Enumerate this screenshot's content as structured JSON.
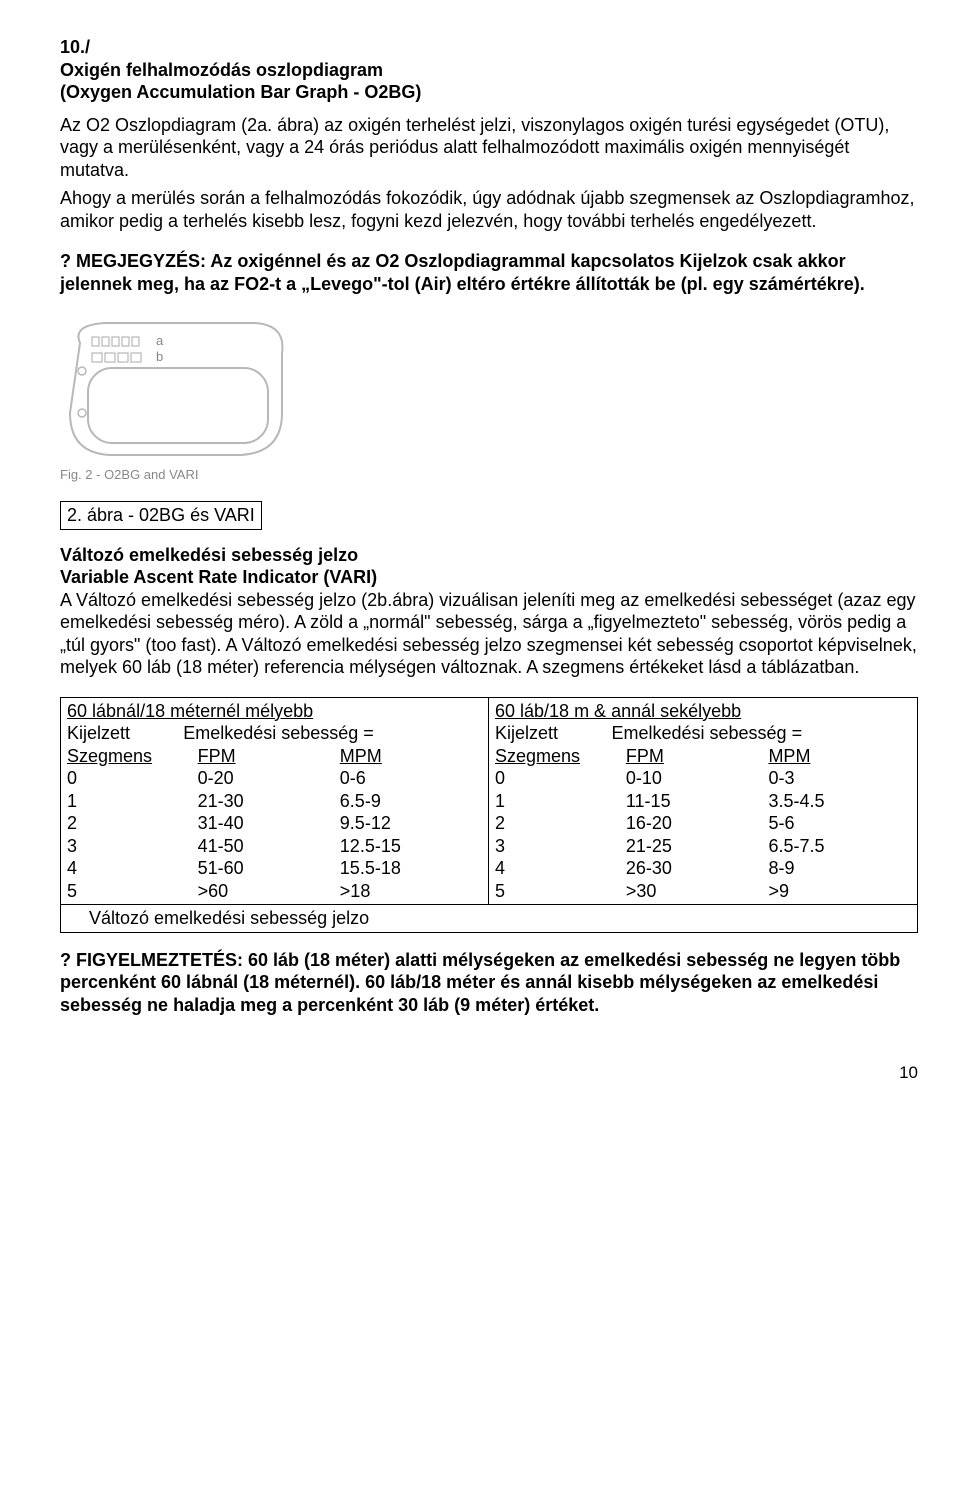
{
  "header": {
    "num": "10./",
    "title_hu": "Oxigén felhalmozódás oszlopdiagram",
    "title_en": "(Oxygen Accumulation Bar Graph - O2BG)"
  },
  "p1": "Az O2 Oszlopdiagram (2a. ábra) az oxigén terhelést jelzi, viszonylagos oxigén turési egységedet (OTU), vagy a merülésenként, vagy a 24 órás periódus alatt felhalmozódott maximális oxigén mennyiségét mutatva.",
  "p2": "Ahogy a merülés során a felhalmozódás fokozódik, úgy adódnak újabb szegmensek az Oszlopdiagramhoz, amikor pedig a terhelés kisebb lesz, fogyni kezd jelezvén, hogy további terhelés engedélyezett.",
  "note": "? MEGJEGYZÉS: Az oxigénnel és az O2 Oszlopdiagrammal kapcsolatos Kijelzok csak akkor jelennek meg, ha az FO2-t a „Levego\"-tol (Air) eltéro értékre állították be (pl. egy számértékre).",
  "fig": {
    "a": "a",
    "b": "b",
    "caption": "Fig. 2 - O2BG and VARI"
  },
  "fig_label": "2. ábra - 02BG és VARI",
  "vari": {
    "title_hu": "Változó emelkedési sebesség jelzo",
    "title_en": "Variable Ascent Rate Indicator (VARI)",
    "body": "A Változó emelkedési sebesség jelzo (2b.ábra)  vizuálisan jeleníti meg az emelkedési sebességet (azaz egy emelkedési sebesség méro). A zöld a „normál\" sebesség, sárga a „figyelmezteto\" sebesség, vörös pedig a „túl gyors\" (too fast). A Változó emelkedési sebesség jelzo szegmensei két sebesség csoportot képviselnek, melyek 60 láb (18 méter) referencia mélységen változnak. A szegmens értékeket lásd a táblázatban."
  },
  "tableLeft": {
    "title": "60 lábnál/18 méternél mélyebb",
    "sub1a": "Kijelzett",
    "sub1b": "Emelkedési sebesség =",
    "h1": "Szegmens",
    "h2": "FPM",
    "h3": "MPM",
    "rows": [
      {
        "s": "0",
        "f": "0-20",
        "m": "0-6"
      },
      {
        "s": "1",
        "f": "21-30",
        "m": "6.5-9"
      },
      {
        "s": "2",
        "f": "31-40",
        "m": "9.5-12"
      },
      {
        "s": "3",
        "f": "41-50",
        "m": "12.5-15"
      },
      {
        "s": "4",
        "f": "51-60",
        "m": "15.5-18"
      },
      {
        "s": "5",
        "f": ">60",
        "m": ">18"
      }
    ]
  },
  "tableRight": {
    "title": "60 láb/18 m & annál sekélyebb",
    "sub1a": "Kijelzett",
    "sub1b": "Emelkedési sebesség =",
    "h1": "Szegmens",
    "h2": "FPM",
    "h3": "MPM",
    "rows": [
      {
        "s": "0",
        "f": "0-10",
        "m": "0-3"
      },
      {
        "s": "1",
        "f": "11-15",
        "m": "3.5-4.5"
      },
      {
        "s": "2",
        "f": "16-20",
        "m": "5-6"
      },
      {
        "s": "3",
        "f": "21-25",
        "m": "6.5-7.5"
      },
      {
        "s": "4",
        "f": "26-30",
        "m": "8-9"
      },
      {
        "s": "5",
        "f": ">30",
        "m": ">9"
      }
    ]
  },
  "table_footer": "Változó emelkedési sebesség jelzo",
  "warning": "? FIGYELMEZTETÉS: 60 láb (18 méter) alatti mélységeken az emelkedési sebesség ne legyen több percenként 60 lábnál (18 méternél). 60 láb/18 méter és annál kisebb mélységeken az emelkedési sebesség ne haladja meg a percenként 30 láb (9 méter) értéket.",
  "page_number": "10",
  "svg": {
    "stroke": "#b8b8b8",
    "fill": "#f5f5f5",
    "label_color": "#888"
  }
}
